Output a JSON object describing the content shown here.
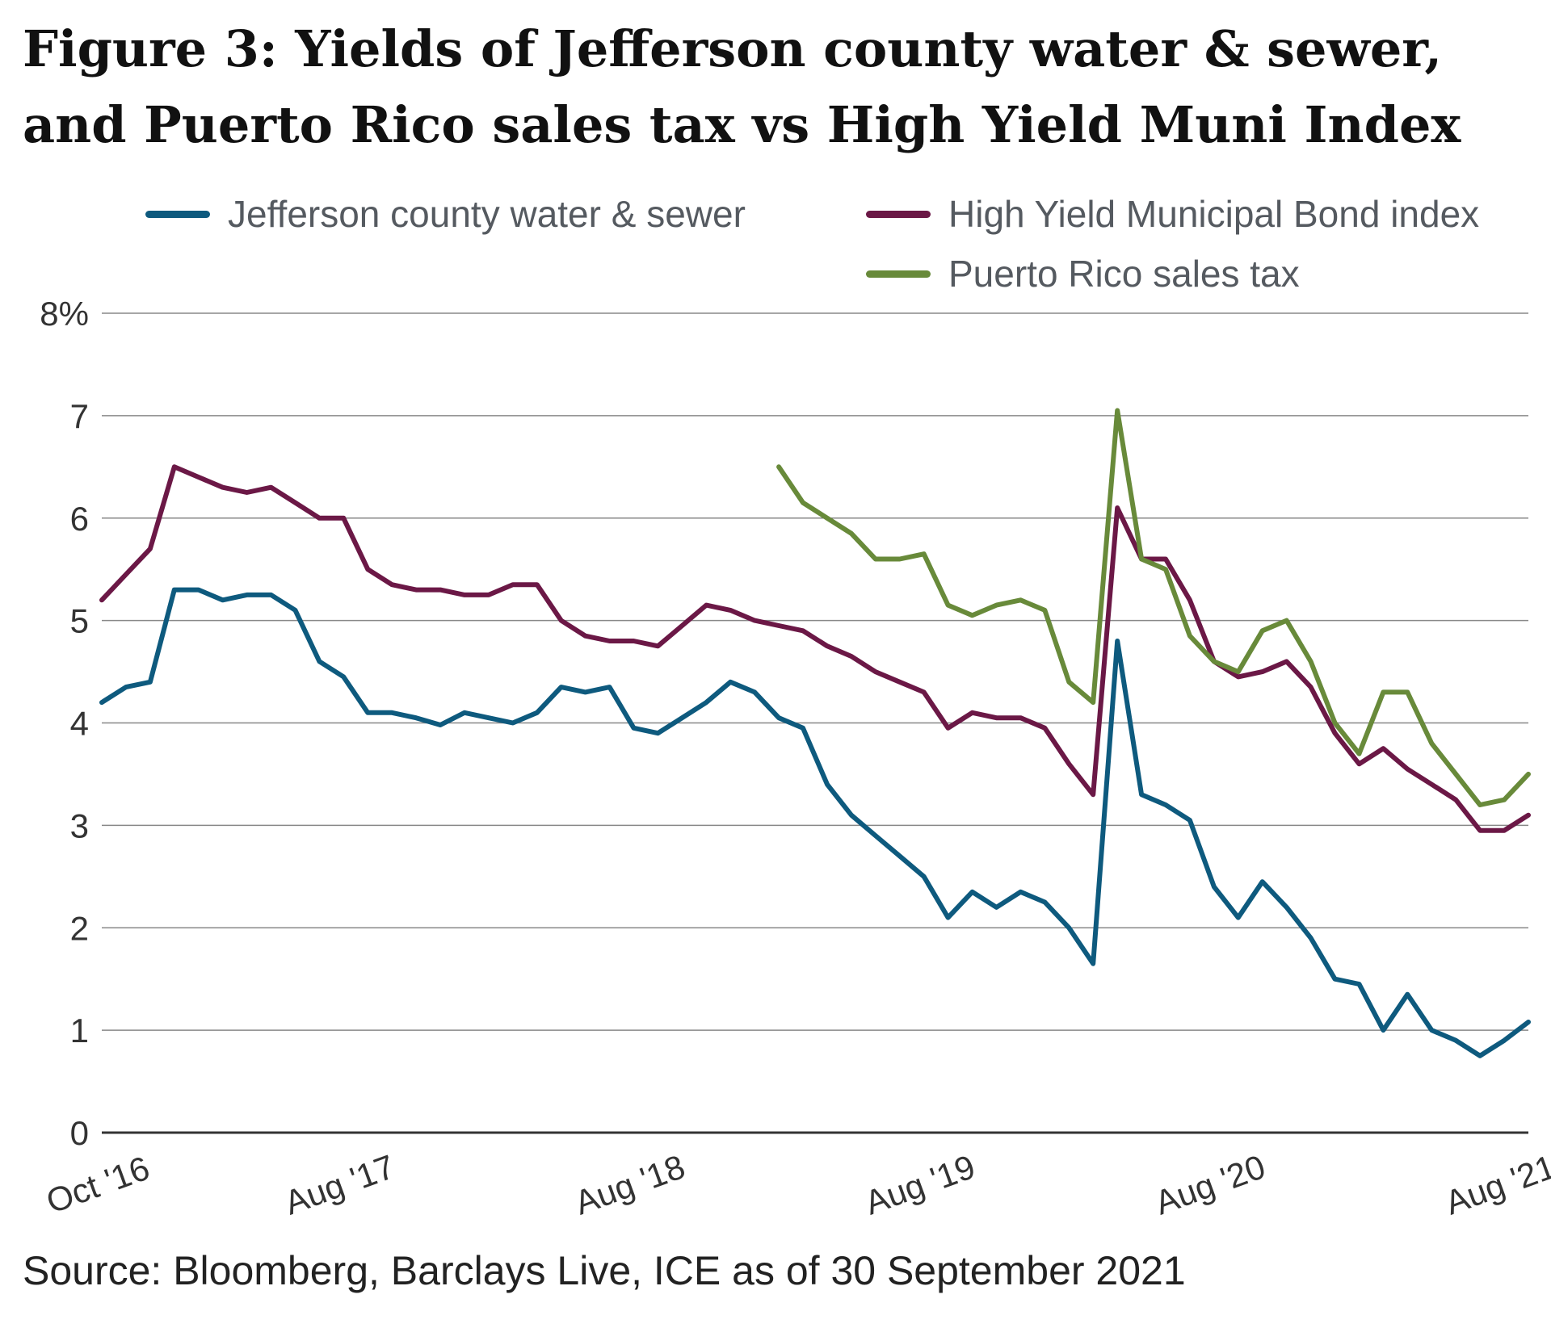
{
  "figure": {
    "title": "Figure 3: Yields of Jefferson county water & sewer, and Puerto Rico sales tax vs High Yield Muni Index",
    "source": "Source: Bloomberg, Barclays Live, ICE as of 30 September 2021"
  },
  "colors": {
    "jefferson": "#0e5a7e",
    "hy_index": "#6b1846",
    "puerto_rico": "#688a3a",
    "grid": "#888888",
    "axis": "#333333"
  },
  "legend": [
    {
      "name": "Jefferson county water & sewer",
      "color": "#0e5a7e"
    },
    {
      "name": "High Yield Municipal Bond index",
      "color": "#6b1846"
    },
    {
      "name": "Puerto Rico sales tax",
      "color": "#688a3a"
    }
  ],
  "chart_data": {
    "type": "line",
    "title": "Figure 3: Yields of Jefferson county water & sewer, and Puerto Rico sales tax vs High Yield Muni Index",
    "xlabel": "",
    "ylabel": "",
    "xlim": [
      "2016-10",
      "2021-09"
    ],
    "ylim": [
      0,
      8
    ],
    "x_tick_labels": [
      {
        "date": "2016-10",
        "label": "Oct '16"
      },
      {
        "date": "2017-08",
        "label": "Aug '17"
      },
      {
        "date": "2018-08",
        "label": "Aug '18"
      },
      {
        "date": "2019-08",
        "label": "Aug '19"
      },
      {
        "date": "2020-08",
        "label": "Aug '20"
      },
      {
        "date": "2021-08",
        "label": "Aug '21"
      }
    ],
    "y_ticks": [
      {
        "value": 0,
        "label": "0"
      },
      {
        "value": 1,
        "label": "1"
      },
      {
        "value": 2,
        "label": "2"
      },
      {
        "value": 3,
        "label": "3"
      },
      {
        "value": 4,
        "label": "4"
      },
      {
        "value": 5,
        "label": "5"
      },
      {
        "value": 6,
        "label": "6"
      },
      {
        "value": 7,
        "label": "7"
      },
      {
        "value": 8,
        "label": "8%"
      }
    ],
    "grid": true,
    "legend_position": "top",
    "series": [
      {
        "name": "Jefferson county water & sewer",
        "color": "#0e5a7e",
        "points": [
          [
            "2016-10",
            4.2
          ],
          [
            "2016-11",
            4.35
          ],
          [
            "2016-12",
            4.4
          ],
          [
            "2017-01",
            5.3
          ],
          [
            "2017-02",
            5.3
          ],
          [
            "2017-03",
            5.2
          ],
          [
            "2017-04",
            5.25
          ],
          [
            "2017-05",
            5.25
          ],
          [
            "2017-06",
            5.1
          ],
          [
            "2017-07",
            4.6
          ],
          [
            "2017-08",
            4.45
          ],
          [
            "2017-09",
            4.1
          ],
          [
            "2017-10",
            4.1
          ],
          [
            "2017-11",
            4.05
          ],
          [
            "2017-12",
            3.98
          ],
          [
            "2018-01",
            4.1
          ],
          [
            "2018-02",
            4.05
          ],
          [
            "2018-03",
            4.0
          ],
          [
            "2018-04",
            4.1
          ],
          [
            "2018-05",
            4.35
          ],
          [
            "2018-06",
            4.3
          ],
          [
            "2018-07",
            4.35
          ],
          [
            "2018-08",
            3.95
          ],
          [
            "2018-09",
            3.9
          ],
          [
            "2018-10",
            4.05
          ],
          [
            "2018-11",
            4.2
          ],
          [
            "2018-12",
            4.4
          ],
          [
            "2019-01",
            4.3
          ],
          [
            "2019-02",
            4.05
          ],
          [
            "2019-03",
            3.95
          ],
          [
            "2019-04",
            3.4
          ],
          [
            "2019-05",
            3.1
          ],
          [
            "2019-06",
            2.9
          ],
          [
            "2019-07",
            2.7
          ],
          [
            "2019-08",
            2.5
          ],
          [
            "2019-09",
            2.1
          ],
          [
            "2019-10",
            2.35
          ],
          [
            "2019-11",
            2.2
          ],
          [
            "2019-12",
            2.35
          ],
          [
            "2020-01",
            2.25
          ],
          [
            "2020-02",
            2.0
          ],
          [
            "2020-03",
            1.65
          ],
          [
            "2020-04",
            4.8
          ],
          [
            "2020-05",
            3.3
          ],
          [
            "2020-06",
            3.2
          ],
          [
            "2020-07",
            3.05
          ],
          [
            "2020-08",
            2.4
          ],
          [
            "2020-09",
            2.1
          ],
          [
            "2020-10",
            2.45
          ],
          [
            "2020-11",
            2.2
          ],
          [
            "2020-12",
            1.9
          ],
          [
            "2021-01",
            1.5
          ],
          [
            "2021-02",
            1.45
          ],
          [
            "2021-03",
            1.0
          ],
          [
            "2021-04",
            1.35
          ],
          [
            "2021-05",
            1.0
          ],
          [
            "2021-06",
            0.9
          ],
          [
            "2021-07",
            0.75
          ],
          [
            "2021-08",
            0.9
          ],
          [
            "2021-09",
            1.08
          ]
        ]
      },
      {
        "name": "High Yield Municipal Bond index",
        "color": "#6b1846",
        "points": [
          [
            "2016-10",
            5.2
          ],
          [
            "2016-11",
            5.45
          ],
          [
            "2016-12",
            5.7
          ],
          [
            "2017-01",
            6.5
          ],
          [
            "2017-02",
            6.4
          ],
          [
            "2017-03",
            6.3
          ],
          [
            "2017-04",
            6.25
          ],
          [
            "2017-05",
            6.3
          ],
          [
            "2017-06",
            6.15
          ],
          [
            "2017-07",
            6.0
          ],
          [
            "2017-08",
            6.0
          ],
          [
            "2017-09",
            5.5
          ],
          [
            "2017-10",
            5.35
          ],
          [
            "2017-11",
            5.3
          ],
          [
            "2017-12",
            5.3
          ],
          [
            "2018-01",
            5.25
          ],
          [
            "2018-02",
            5.25
          ],
          [
            "2018-03",
            5.35
          ],
          [
            "2018-04",
            5.35
          ],
          [
            "2018-05",
            5.0
          ],
          [
            "2018-06",
            4.85
          ],
          [
            "2018-07",
            4.8
          ],
          [
            "2018-08",
            4.8
          ],
          [
            "2018-09",
            4.75
          ],
          [
            "2018-10",
            4.95
          ],
          [
            "2018-11",
            5.15
          ],
          [
            "2018-12",
            5.1
          ],
          [
            "2019-01",
            5.0
          ],
          [
            "2019-02",
            4.95
          ],
          [
            "2019-03",
            4.9
          ],
          [
            "2019-04",
            4.75
          ],
          [
            "2019-05",
            4.65
          ],
          [
            "2019-06",
            4.5
          ],
          [
            "2019-07",
            4.4
          ],
          [
            "2019-08",
            4.3
          ],
          [
            "2019-09",
            3.95
          ],
          [
            "2019-10",
            4.1
          ],
          [
            "2019-11",
            4.05
          ],
          [
            "2019-12",
            4.05
          ],
          [
            "2020-01",
            3.95
          ],
          [
            "2020-02",
            3.6
          ],
          [
            "2020-03",
            3.3
          ],
          [
            "2020-04",
            6.1
          ],
          [
            "2020-05",
            5.6
          ],
          [
            "2020-06",
            5.6
          ],
          [
            "2020-07",
            5.2
          ],
          [
            "2020-08",
            4.6
          ],
          [
            "2020-09",
            4.45
          ],
          [
            "2020-10",
            4.5
          ],
          [
            "2020-11",
            4.6
          ],
          [
            "2020-12",
            4.35
          ],
          [
            "2021-01",
            3.9
          ],
          [
            "2021-02",
            3.6
          ],
          [
            "2021-03",
            3.75
          ],
          [
            "2021-04",
            3.55
          ],
          [
            "2021-05",
            3.4
          ],
          [
            "2021-06",
            3.25
          ],
          [
            "2021-07",
            2.95
          ],
          [
            "2021-08",
            2.95
          ],
          [
            "2021-09",
            3.1
          ]
        ]
      },
      {
        "name": "Puerto Rico sales tax",
        "color": "#688a3a",
        "points": [
          [
            "2019-02",
            6.5
          ],
          [
            "2019-03",
            6.15
          ],
          [
            "2019-04",
            6.0
          ],
          [
            "2019-05",
            5.85
          ],
          [
            "2019-06",
            5.6
          ],
          [
            "2019-07",
            5.6
          ],
          [
            "2019-08",
            5.65
          ],
          [
            "2019-09",
            5.15
          ],
          [
            "2019-10",
            5.05
          ],
          [
            "2019-11",
            5.15
          ],
          [
            "2019-12",
            5.2
          ],
          [
            "2020-01",
            5.1
          ],
          [
            "2020-02",
            4.4
          ],
          [
            "2020-03",
            4.2
          ],
          [
            "2020-04",
            7.05
          ],
          [
            "2020-05",
            5.6
          ],
          [
            "2020-06",
            5.5
          ],
          [
            "2020-07",
            4.85
          ],
          [
            "2020-08",
            4.6
          ],
          [
            "2020-09",
            4.5
          ],
          [
            "2020-10",
            4.9
          ],
          [
            "2020-11",
            5.0
          ],
          [
            "2020-12",
            4.6
          ],
          [
            "2021-01",
            4.0
          ],
          [
            "2021-02",
            3.7
          ],
          [
            "2021-03",
            4.3
          ],
          [
            "2021-04",
            4.3
          ],
          [
            "2021-05",
            3.8
          ],
          [
            "2021-06",
            3.5
          ],
          [
            "2021-07",
            3.2
          ],
          [
            "2021-08",
            3.25
          ],
          [
            "2021-09",
            3.5
          ]
        ]
      }
    ]
  }
}
